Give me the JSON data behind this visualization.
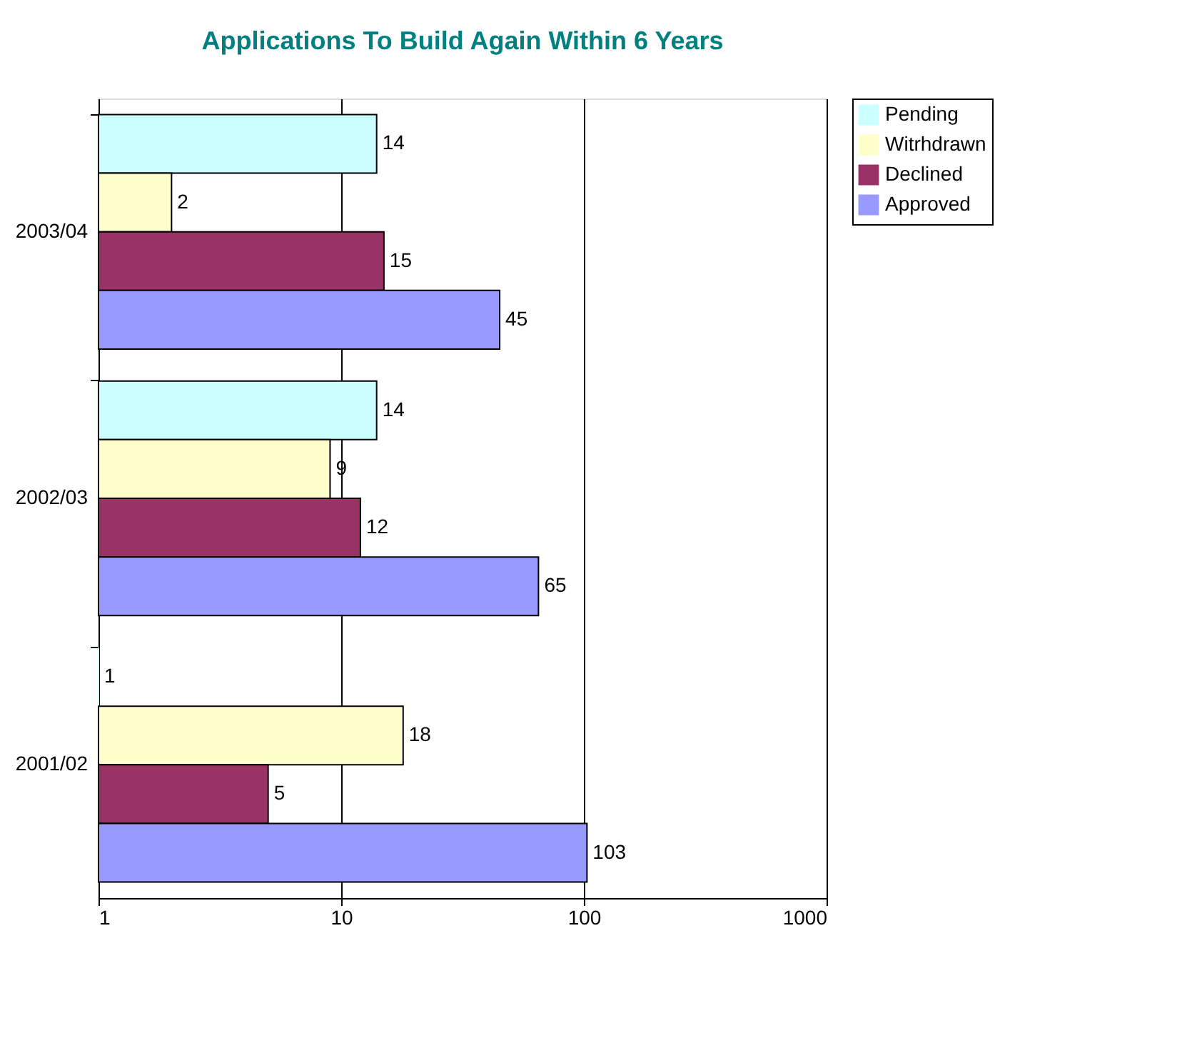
{
  "chart_data": {
    "type": "bar",
    "orientation": "horizontal",
    "title": "Applications To Build Again Within 6 Years",
    "categories": [
      "2003/04",
      "2002/03",
      "2001/02"
    ],
    "series": [
      {
        "name": "Pending",
        "color": "#ccffff",
        "values": [
          14,
          14,
          1
        ]
      },
      {
        "name": "Witrhdrawn",
        "color": "#ffffcc",
        "values": [
          2,
          9,
          18
        ]
      },
      {
        "name": "Declined",
        "color": "#993366",
        "values": [
          15,
          12,
          5
        ]
      },
      {
        "name": "Approved",
        "color": "#9999ff",
        "values": [
          45,
          65,
          103
        ]
      }
    ],
    "log": "x",
    "xlim": [
      1,
      1000
    ],
    "xticks": [
      1,
      10,
      100,
      1000
    ],
    "grid": "x",
    "legend": "right",
    "data_labels": true
  }
}
